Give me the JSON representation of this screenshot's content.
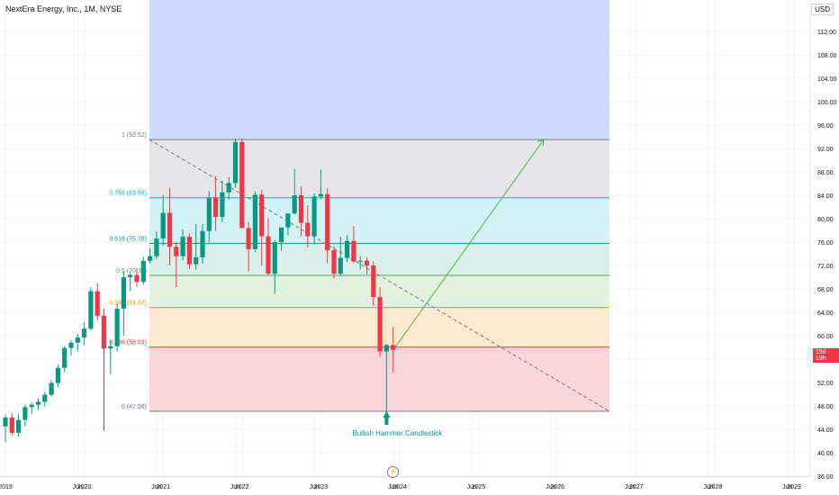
{
  "header": {
    "title": "NextEra Energy, Inc., 1M, NYSE",
    "currency": "USD",
    "price_label": "15d 19h"
  },
  "chart_data": {
    "type": "candlestick",
    "title": "NextEra Energy, Inc., 1M, NYSE",
    "ylabel": "USD",
    "ylim": [
      35,
      118
    ],
    "y_ticks": [
      36.0,
      40.0,
      44.0,
      48.0,
      52.0,
      56.0,
      60.0,
      64.0,
      68.0,
      72.0,
      76.0,
      80.0,
      84.0,
      88.0,
      92.0,
      96.0,
      100.0,
      104.0,
      108.0,
      112.0
    ],
    "x_ticks": [
      "2019",
      "Jun",
      "2020",
      "Jun",
      "2021",
      "Jun",
      "2022",
      "Jun",
      "2023",
      "Jun",
      "2024",
      "Jun",
      "2025",
      "Jun",
      "2026",
      "Jun",
      "2027",
      "Jun",
      "2028",
      "Jun",
      "2029"
    ],
    "candles": [
      {
        "o": 44.5,
        "h": 46.5,
        "l": 41.8,
        "c": 46.0
      },
      {
        "o": 46.0,
        "h": 46.8,
        "l": 43.0,
        "c": 43.4
      },
      {
        "o": 43.4,
        "h": 46.6,
        "l": 42.7,
        "c": 45.6
      },
      {
        "o": 45.6,
        "h": 48.2,
        "l": 44.5,
        "c": 47.8
      },
      {
        "o": 47.8,
        "h": 48.6,
        "l": 46.6,
        "c": 48.2
      },
      {
        "o": 48.2,
        "h": 49.3,
        "l": 47.3,
        "c": 48.7
      },
      {
        "o": 48.7,
        "h": 50.3,
        "l": 47.9,
        "c": 49.9
      },
      {
        "o": 49.9,
        "h": 52.4,
        "l": 49.6,
        "c": 51.9
      },
      {
        "o": 51.9,
        "h": 55.1,
        "l": 51.2,
        "c": 54.5
      },
      {
        "o": 54.5,
        "h": 58.2,
        "l": 53.8,
        "c": 57.9
      },
      {
        "o": 57.9,
        "h": 59.2,
        "l": 56.6,
        "c": 58.8
      },
      {
        "o": 58.8,
        "h": 60.3,
        "l": 57.3,
        "c": 59.7
      },
      {
        "o": 59.7,
        "h": 62.3,
        "l": 58.4,
        "c": 61.2
      },
      {
        "o": 61.2,
        "h": 68.3,
        "l": 60.9,
        "c": 67.6
      },
      {
        "o": 67.6,
        "h": 69.0,
        "l": 62.6,
        "c": 63.4
      },
      {
        "o": 63.4,
        "h": 64.6,
        "l": 43.7,
        "c": 57.8
      },
      {
        "o": 57.8,
        "h": 59.2,
        "l": 53.4,
        "c": 58.2
      },
      {
        "o": 58.2,
        "h": 65.5,
        "l": 57.3,
        "c": 64.6
      },
      {
        "o": 64.6,
        "h": 71.0,
        "l": 60.0,
        "c": 70.0
      },
      {
        "o": 70.0,
        "h": 71.0,
        "l": 67.6,
        "c": 70.4
      },
      {
        "o": 70.4,
        "h": 71.5,
        "l": 68.4,
        "c": 69.2
      },
      {
        "o": 69.2,
        "h": 73.5,
        "l": 68.7,
        "c": 72.8
      },
      {
        "o": 72.8,
        "h": 75.0,
        "l": 72.4,
        "c": 73.6
      },
      {
        "o": 73.6,
        "h": 77.8,
        "l": 73.1,
        "c": 76.6
      },
      {
        "o": 76.6,
        "h": 84.1,
        "l": 75.4,
        "c": 81.0
      },
      {
        "o": 81.0,
        "h": 85.3,
        "l": 72.0,
        "c": 75.2
      },
      {
        "o": 75.2,
        "h": 76.0,
        "l": 68.3,
        "c": 73.6
      },
      {
        "o": 73.6,
        "h": 78.2,
        "l": 72.9,
        "c": 76.9
      },
      {
        "o": 76.9,
        "h": 77.5,
        "l": 71.4,
        "c": 72.2
      },
      {
        "o": 72.2,
        "h": 79.1,
        "l": 71.3,
        "c": 73.4
      },
      {
        "o": 73.4,
        "h": 79.1,
        "l": 72.3,
        "c": 77.9
      },
      {
        "o": 77.9,
        "h": 84.7,
        "l": 76.0,
        "c": 83.6
      },
      {
        "o": 83.6,
        "h": 87.3,
        "l": 77.9,
        "c": 80.3
      },
      {
        "o": 80.3,
        "h": 86.5,
        "l": 79.4,
        "c": 84.5
      },
      {
        "o": 84.5,
        "h": 87.1,
        "l": 83.3,
        "c": 86.1
      },
      {
        "o": 86.1,
        "h": 93.7,
        "l": 85.3,
        "c": 93.1
      },
      {
        "o": 93.1,
        "h": 93.7,
        "l": 78.4,
        "c": 78.4
      },
      {
        "o": 78.4,
        "h": 79.5,
        "l": 71.0,
        "c": 74.8
      },
      {
        "o": 74.8,
        "h": 84.7,
        "l": 74.3,
        "c": 84.1
      },
      {
        "o": 84.1,
        "h": 84.9,
        "l": 72.0,
        "c": 77.0
      },
      {
        "o": 77.0,
        "h": 80.1,
        "l": 70.4,
        "c": 70.6
      },
      {
        "o": 70.6,
        "h": 76.3,
        "l": 67.2,
        "c": 76.0
      },
      {
        "o": 76.0,
        "h": 78.5,
        "l": 74.5,
        "c": 78.5
      },
      {
        "o": 78.5,
        "h": 80.3,
        "l": 77.2,
        "c": 80.9
      },
      {
        "o": 80.9,
        "h": 88.5,
        "l": 80.7,
        "c": 84.0
      },
      {
        "o": 84.0,
        "h": 85.5,
        "l": 77.0,
        "c": 79.3
      },
      {
        "o": 79.3,
        "h": 82.3,
        "l": 75.1,
        "c": 77.0
      },
      {
        "o": 77.0,
        "h": 84.3,
        "l": 75.6,
        "c": 83.8
      },
      {
        "o": 83.8,
        "h": 88.4,
        "l": 83.4,
        "c": 84.2
      },
      {
        "o": 84.2,
        "h": 85.2,
        "l": 72.4,
        "c": 74.6
      },
      {
        "o": 74.6,
        "h": 75.3,
        "l": 69.8,
        "c": 70.6
      },
      {
        "o": 70.6,
        "h": 76.9,
        "l": 70.2,
        "c": 73.3
      },
      {
        "o": 73.3,
        "h": 77.2,
        "l": 72.6,
        "c": 76.2
      },
      {
        "o": 76.2,
        "h": 78.7,
        "l": 72.4,
        "c": 72.7
      },
      {
        "o": 72.7,
        "h": 73.6,
        "l": 71.3,
        "c": 72.8
      },
      {
        "o": 72.8,
        "h": 73.4,
        "l": 70.5,
        "c": 72.0
      },
      {
        "o": 72.0,
        "h": 72.7,
        "l": 65.1,
        "c": 66.6
      },
      {
        "o": 66.6,
        "h": 68.3,
        "l": 56.4,
        "c": 57.3
      },
      {
        "o": 57.3,
        "h": 58.6,
        "l": 47.1,
        "c": 58.4
      },
      {
        "o": 58.4,
        "h": 61.5,
        "l": 53.7,
        "c": 57.6
      }
    ],
    "fib_levels": [
      {
        "ratio": "1",
        "value": 93.52,
        "label": "1 (93.52)",
        "color": "#787b86",
        "fill": "#e6e6e8"
      },
      {
        "ratio": "0.786",
        "value": 83.58,
        "label": "0.786 (83.58)",
        "color": "#00bcd4",
        "fill": "#d3f2f5"
      },
      {
        "ratio": "0.618",
        "value": 75.78,
        "label": "0.618 (75.78)",
        "color": "#089981",
        "fill": "#d9f0ea"
      },
      {
        "ratio": "0.5",
        "value": 70.3,
        "label": "0.5 (70.30)",
        "color": "#4caf50",
        "fill": "#e3f1df"
      },
      {
        "ratio": "0.382",
        "value": 64.82,
        "label": "0.382 (64.82)",
        "color": "#ff9800",
        "fill": "#fde9cf"
      },
      {
        "ratio": "0.236",
        "value": 58.04,
        "label": "0.236 (58.04)",
        "color": "#f23645",
        "fill": "#fad6da"
      },
      {
        "ratio": "0",
        "value": 47.08,
        "label": "0 (47.08)",
        "color": "#787b86",
        "fill": null
      }
    ],
    "extension_fill": "#ccdbff",
    "annotation": "Bullish Hammer Candlestick",
    "colors": {
      "up": "#089981",
      "down": "#f23645",
      "arrow": "#4caf50"
    }
  }
}
